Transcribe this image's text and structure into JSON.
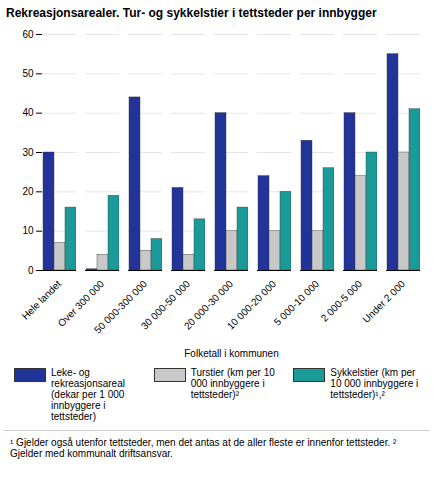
{
  "chart_data": {
    "type": "bar",
    "title": "Rekreasjonsarealer. Tur- og sykkelstier i tettsteder per innbygger",
    "xlabel": "Folketall i kommunen",
    "categories": [
      "Hele landet",
      "Over 300 000",
      "50 000-300 000",
      "30 000-50 000",
      "20 000-30 000",
      "10 000-20 000",
      "5 000-10 000",
      "2 000-5 000",
      "Under 2 000"
    ],
    "series": [
      {
        "name": "Leke- og rekreasjonsareal (dekar per 1 000 innbyggere i tettsteder)",
        "color": "#22349a",
        "values": [
          30,
          0.3,
          44,
          21,
          40,
          24,
          33,
          40,
          55
        ]
      },
      {
        "name": "Turstier (km per 10 000 innbyggere i tettsteder)²",
        "color": "#c8c8c8",
        "values": [
          7,
          4,
          5,
          4,
          10,
          10,
          10,
          24,
          30
        ]
      },
      {
        "name": "Sykkelstier (km per 10 000 innbyggere i tettsteder)¹,²",
        "color": "#1b9a9a",
        "values": [
          16,
          19,
          8,
          13,
          16,
          20,
          26,
          30,
          41
        ]
      }
    ],
    "ylim": [
      0,
      60
    ],
    "yticks": [
      0,
      10,
      20,
      30,
      40,
      50,
      60
    ],
    "grid": true,
    "legend": "bottom",
    "footnotes": [
      "¹ Gjelder også utenfor tettsteder, men det antas at de aller fleste er innenfor tettsteder.",
      "² Gjelder med kommunalt driftsansvar."
    ]
  }
}
